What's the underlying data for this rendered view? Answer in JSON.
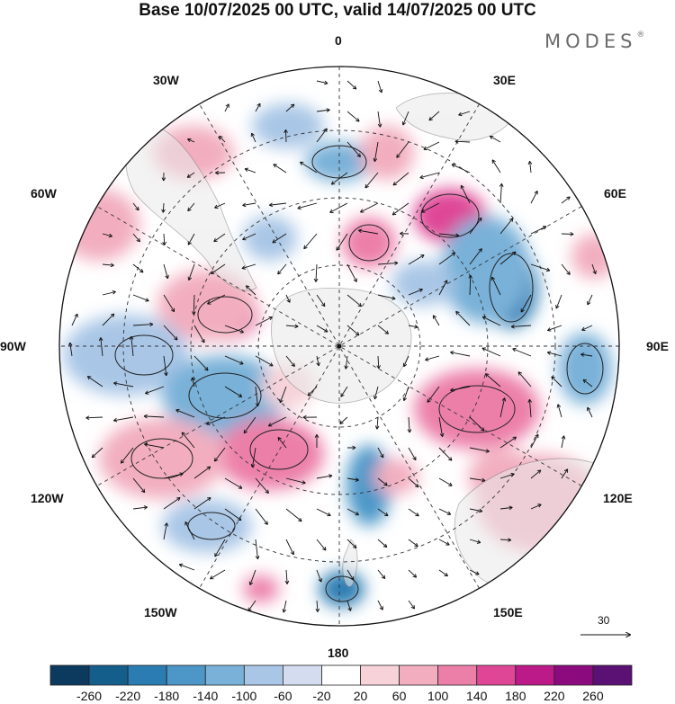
{
  "title": "Base 10/07/2025 00 UTC, valid 14/07/2025 00 UTC",
  "brand": "MODES",
  "brand_mark": "®",
  "longitude_labels": [
    "0",
    "30E",
    "60E",
    "90E",
    "120E",
    "150E",
    "180",
    "150W",
    "120W",
    "90W",
    "60W",
    "30W"
  ],
  "vector_scale": {
    "value": "30"
  },
  "colorbar": {
    "ticks": [
      "-260",
      "-220",
      "-180",
      "-140",
      "-100",
      "-60",
      "-20",
      "20",
      "60",
      "100",
      "140",
      "180",
      "220",
      "260"
    ],
    "colors": [
      "#0c3a5f",
      "#145e8c",
      "#2a7cb2",
      "#4c97c8",
      "#79b1d8",
      "#a9c6e6",
      "#d4dcef",
      "#ffffff",
      "#f7d3d9",
      "#f2aebf",
      "#ec7fa8",
      "#df4796",
      "#bb1a88",
      "#8b0b7e",
      "#5a1173"
    ]
  },
  "colors": {
    "land": "#e9e9e9",
    "grid": "#333333"
  }
}
